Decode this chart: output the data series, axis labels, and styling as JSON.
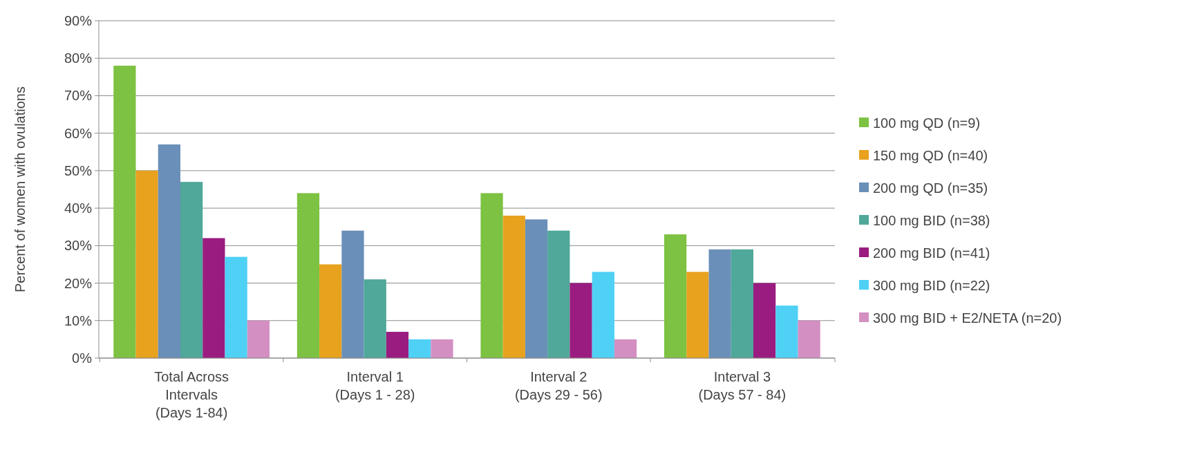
{
  "chart_data": {
    "type": "bar",
    "ylabel": "Percent of women with ovulations",
    "categories": [
      "Total Across\nIntervals\n(Days 1-84)",
      "Interval 1\n(Days 1 - 28)",
      "Interval 2\n(Days 29 - 56)",
      "Interval 3\n(Days 57 - 84)"
    ],
    "series": [
      {
        "name": "100 mg QD (n=9)",
        "color": "#7dc242",
        "values": [
          78,
          44,
          44,
          33
        ]
      },
      {
        "name": "150 mg QD (n=40)",
        "color": "#e8a21e",
        "values": [
          50,
          25,
          38,
          23
        ]
      },
      {
        "name": "200 mg QD (n=35)",
        "color": "#6a8fb8",
        "values": [
          57,
          34,
          37,
          29
        ]
      },
      {
        "name": "100 mg BID (n=38)",
        "color": "#4fa89a",
        "values": [
          47,
          21,
          34,
          29
        ]
      },
      {
        "name": "200 mg BID (n=41)",
        "color": "#9b1c80",
        "values": [
          32,
          7,
          20,
          20
        ]
      },
      {
        "name": "300 mg BID (n=22)",
        "color": "#4fd0f5",
        "values": [
          27,
          5,
          23,
          14
        ]
      },
      {
        "name": "300 mg BID + E2/NETA (n=20)",
        "color": "#d48fc2",
        "values": [
          10,
          5,
          5,
          10
        ]
      }
    ],
    "ylim": [
      0,
      90
    ],
    "yticks": [
      {
        "value": 0,
        "label": "0%"
      },
      {
        "value": 10,
        "label": "10%"
      },
      {
        "value": 20,
        "label": "20%"
      },
      {
        "value": 30,
        "label": "30%"
      },
      {
        "value": 40,
        "label": "40%"
      },
      {
        "value": 50,
        "label": "50%"
      },
      {
        "value": 60,
        "label": "60%"
      },
      {
        "value": 70,
        "label": "70%"
      },
      {
        "value": 80,
        "label": "80%"
      },
      {
        "value": 90,
        "label": "90%"
      }
    ],
    "grid": "y",
    "legend": "right"
  }
}
